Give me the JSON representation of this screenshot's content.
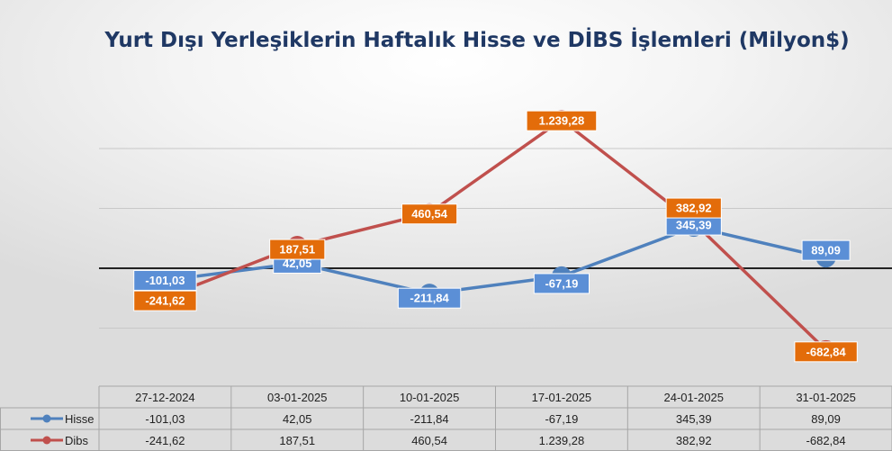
{
  "title": "Yurt Dışı Yerleşiklerin Haftalık Hisse ve DİBS İşlemleri (Milyon$)",
  "colors": {
    "hisse": "#4f81bd",
    "hisse_label_bg": "#5b8fd6",
    "dibs": "#c0504d",
    "dibs_label_bg": "#e36c0a",
    "zero_line": "#222222",
    "grid": "#c8c8c8"
  },
  "chart_data": {
    "type": "line",
    "title": "Yurt Dışı Yerleşiklerin Haftalık Hisse ve DİBS İşlemleri (Milyon$)",
    "categories": [
      "27-12-2024",
      "03-01-2025",
      "10-01-2025",
      "17-01-2025",
      "24-01-2025",
      "31-01-2025"
    ],
    "series": [
      {
        "name": "Hisse",
        "color": "#4f81bd",
        "values": [
          -101.03,
          42.05,
          -211.84,
          -67.19,
          345.39,
          89.09
        ],
        "labels": [
          "-101,03",
          "42,05",
          "-211,84",
          "-67,19",
          "345,39",
          "89,09"
        ]
      },
      {
        "name": "Dibs",
        "color": "#c0504d",
        "values": [
          -241.62,
          187.51,
          460.54,
          1239.28,
          382.92,
          -682.84
        ],
        "labels": [
          "-241,62",
          "187,51",
          "460,54",
          "1.239,28",
          "382,92",
          "-682,84"
        ]
      }
    ],
    "ylim": [
      -1000,
      1500
    ],
    "grid": true,
    "data_table": true,
    "legend": "data table"
  }
}
